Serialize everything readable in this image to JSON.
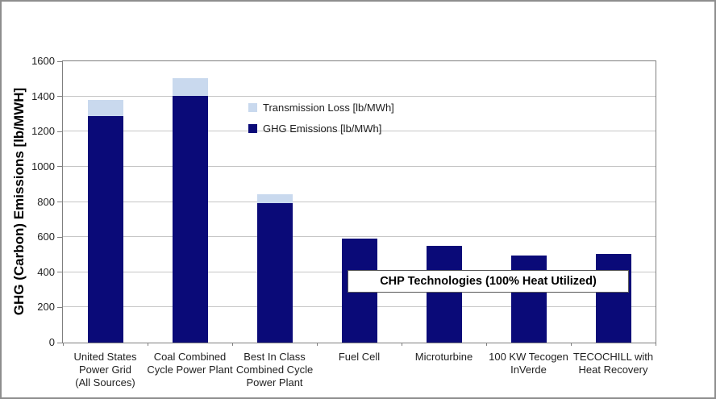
{
  "figure": {
    "ylabel": "GHG (Carbon) Emissions [lb/MWH]",
    "annotation_label": "CHP Technologies (100% Heat Utilized)",
    "legend": [
      {
        "label": "Transmission Loss [lb/MWh]",
        "color": "#c9d9ee"
      },
      {
        "label": "GHG Emissions [lb/MWh]",
        "color": "#0a0a78"
      }
    ]
  },
  "chart_data": {
    "type": "bar",
    "stacked": true,
    "title": "",
    "xlabel": "",
    "ylabel": "GHG (Carbon) Emissions [lb/MWH]",
    "ylim": [
      0,
      1600
    ],
    "yticks": [
      0,
      200,
      400,
      600,
      800,
      1000,
      1200,
      1400,
      1600
    ],
    "grid": true,
    "legend_position": "inside-upper-left-of-plot",
    "categories": [
      "United States Power Grid (All Sources)",
      "Coal Combined Cycle Power Plant",
      "Best In Class Combined Cycle Power Plant",
      "Fuel Cell",
      "Microturbine",
      "100 KW Tecogen InVerde",
      "TECOCHILL with Heat Recovery"
    ],
    "category_label_lines": [
      [
        "United States",
        "Power Grid",
        "(All Sources)"
      ],
      [
        "Coal Combined",
        "Cycle Power Plant"
      ],
      [
        "Best In Class",
        "Combined Cycle",
        "Power Plant"
      ],
      [
        "Fuel Cell"
      ],
      [
        "Microturbine"
      ],
      [
        "100 KW Tecogen",
        "InVerde"
      ],
      [
        "TECOCHILL with",
        "Heat Recovery"
      ]
    ],
    "series": [
      {
        "name": "GHG Emissions [lb/MWh]",
        "color": "#0a0a78",
        "values": [
          1290,
          1405,
          795,
          590,
          550,
          495,
          505
        ]
      },
      {
        "name": "Transmission Loss [lb/MWh]",
        "color": "#c9d9ee",
        "values": [
          90,
          100,
          50,
          0,
          0,
          0,
          0
        ]
      }
    ],
    "stack_totals": [
      1380,
      1505,
      845,
      590,
      550,
      495,
      505
    ],
    "annotation": {
      "text": "CHP Technologies (100% Heat Utilized)",
      "applies_to": [
        "Fuel Cell",
        "Microturbine",
        "100 KW Tecogen InVerde",
        "TECOCHILL with Heat Recovery"
      ],
      "y_value_range": [
        290,
        410
      ]
    },
    "colors": {
      "ghg_bar": "#0a0a78",
      "transmission_bar": "#c9d9ee",
      "gridline": "#c6c6c6",
      "axis_frame": "#7f7f7f"
    }
  }
}
